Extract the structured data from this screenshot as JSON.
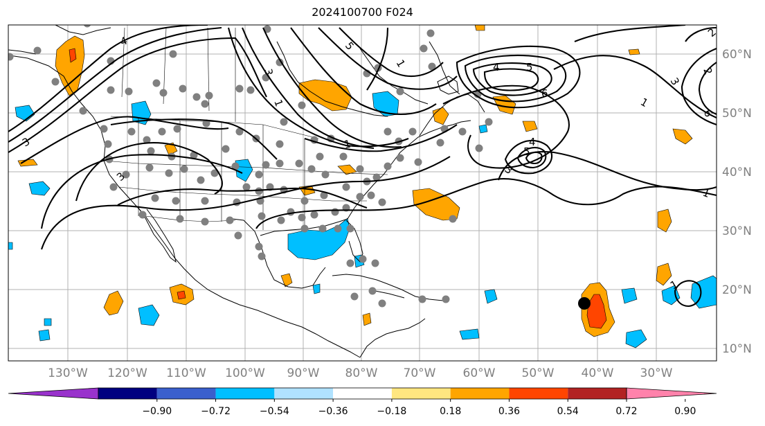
{
  "title": "2024100700 F024",
  "lon_labels": [
    "130°W",
    "120°W",
    "110°W",
    "100°W",
    "90°W",
    "80°W",
    "70°W",
    "60°W",
    "50°W",
    "40°W",
    "30°W"
  ],
  "lat_labels": [
    "60°N",
    "50°N",
    "40°N",
    "30°N",
    "20°N",
    "10°N"
  ],
  "colorbar": {
    "ticks": [
      "−0.90",
      "−0.72",
      "−0.54",
      "−0.36",
      "−0.18",
      "0.18",
      "0.36",
      "0.54",
      "0.72",
      "0.90"
    ],
    "colors": [
      "#9932cc",
      "#000080",
      "#3a5fcd",
      "#00bfff",
      "#b0e2ff",
      "#ffffff",
      "#ffe680",
      "#ffa500",
      "#ff4500",
      "#b22222",
      "#ff82ab"
    ]
  },
  "fill_colors": {
    "orange": "#ffa500",
    "red": "#ff4500",
    "sky": "#00bfff",
    "gray_dots": "#808080"
  },
  "contour_labels": [
    "1",
    "1",
    "1",
    "1",
    "2",
    "3",
    "3",
    "3",
    "3",
    "4",
    "4",
    "5",
    "5",
    "6",
    "6",
    "3",
    "5",
    "4",
    "1",
    "2",
    "1"
  ],
  "marker": "storm-position-marker"
}
